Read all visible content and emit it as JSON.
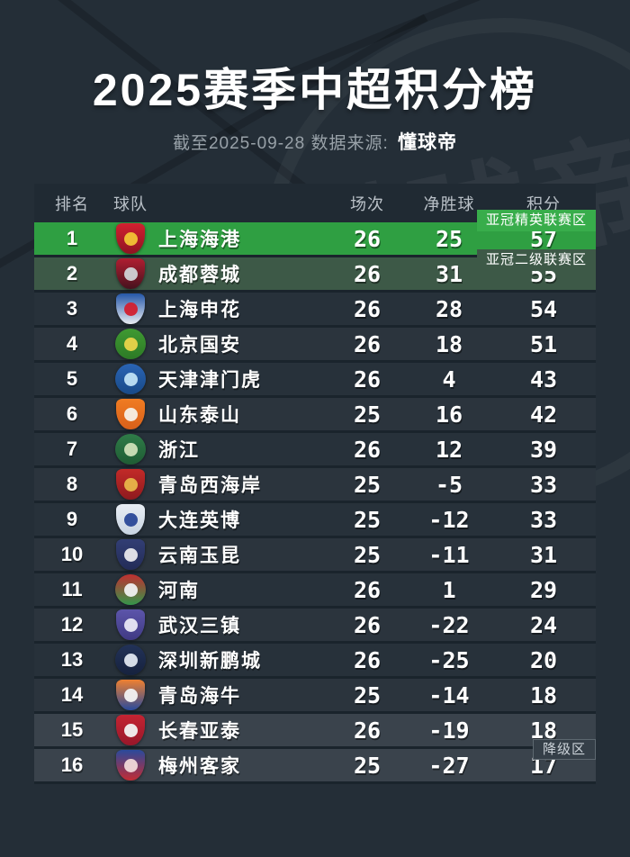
{
  "title": "2025赛季中超积分榜",
  "subtitle": {
    "prefix": "截至2025-09-28 数据来源:",
    "source": "懂球帝"
  },
  "watermark": "懂球帝",
  "colors": {
    "page_bg": "#242e37",
    "header_bg": "#202a33",
    "row_bg": "#27313a",
    "row_alt_bg": "#2b343d",
    "separator": "#1a242c",
    "acl-elite": "#2f9f42",
    "acl-second": "#3d5947",
    "relegation": "#3a434c",
    "zone_elite_badge": "#38ad4b",
    "zone_second_badge": "#3d5947",
    "zone_relegation_badge": "#353f48"
  },
  "table": {
    "headers": {
      "rank": "排名",
      "team": "球队",
      "played": "场次",
      "goal_diff": "净胜球",
      "points": "积分"
    },
    "zones": [
      {
        "label": "亚冠精英联赛区",
        "color_key": "zone_elite_badge"
      },
      {
        "label": "亚冠二级联赛区",
        "color_key": "zone_second_badge"
      },
      {
        "label": "降级区",
        "color_key": "zone_relegation_badge"
      }
    ],
    "rows": [
      {
        "rank": 1,
        "team": "上海海港",
        "played": 26,
        "goal_diff": 25,
        "points": 57,
        "highlight": "acl-elite",
        "logo": {
          "shape": "shield",
          "colors": [
            "#d22030",
            "#8f1322"
          ],
          "accent": "#f2c335"
        }
      },
      {
        "rank": 2,
        "team": "成都蓉城",
        "played": 26,
        "goal_diff": 31,
        "points": 55,
        "highlight": "acl-second",
        "logo": {
          "shape": "shield",
          "colors": [
            "#b01e31",
            "#46121e"
          ],
          "accent": "#d0d3d6"
        }
      },
      {
        "rank": 3,
        "team": "上海申花",
        "played": 26,
        "goal_diff": 28,
        "points": 54,
        "highlight": null,
        "logo": {
          "shape": "shield",
          "colors": [
            "#2456a8",
            "#e8ecf2"
          ],
          "accent": "#d22030"
        }
      },
      {
        "rank": 4,
        "team": "北京国安",
        "played": 26,
        "goal_diff": 18,
        "points": 51,
        "highlight": null,
        "logo": {
          "shape": "circle",
          "colors": [
            "#3f9932",
            "#2d7a26"
          ],
          "accent": "#e9d44a"
        }
      },
      {
        "rank": 5,
        "team": "天津津门虎",
        "played": 26,
        "goal_diff": 4,
        "points": 43,
        "highlight": null,
        "logo": {
          "shape": "circle",
          "colors": [
            "#2a64b4",
            "#184a88"
          ],
          "accent": "#bfe2f5"
        }
      },
      {
        "rank": 6,
        "team": "山东泰山",
        "played": 25,
        "goal_diff": 16,
        "points": 42,
        "highlight": null,
        "logo": {
          "shape": "shield",
          "colors": [
            "#f07c22",
            "#d8601a"
          ],
          "accent": "#f5f0e6"
        }
      },
      {
        "rank": 7,
        "team": "浙江",
        "played": 26,
        "goal_diff": 12,
        "points": 39,
        "highlight": null,
        "logo": {
          "shape": "circle",
          "colors": [
            "#2f7c48",
            "#1f5c34"
          ],
          "accent": "#cfe0b8"
        }
      },
      {
        "rank": 8,
        "team": "青岛西海岸",
        "played": 25,
        "goal_diff": -5,
        "points": 33,
        "highlight": null,
        "logo": {
          "shape": "shield",
          "colors": [
            "#c22a28",
            "#8f1a1e"
          ],
          "accent": "#e8b64a"
        }
      },
      {
        "rank": 9,
        "team": "大连英博",
        "played": 25,
        "goal_diff": -12,
        "points": 33,
        "highlight": null,
        "logo": {
          "shape": "shield",
          "colors": [
            "#e9eef4",
            "#c8d4e2"
          ],
          "accent": "#2a4898"
        }
      },
      {
        "rank": 10,
        "team": "云南玉昆",
        "played": 25,
        "goal_diff": -11,
        "points": 31,
        "highlight": null,
        "logo": {
          "shape": "shield",
          "colors": [
            "#323e74",
            "#232c58"
          ],
          "accent": "#e8e8ec"
        }
      },
      {
        "rank": 11,
        "team": "河南",
        "played": 26,
        "goal_diff": 1,
        "points": 29,
        "highlight": null,
        "logo": {
          "shape": "circle",
          "colors": [
            "#c03030",
            "#35964a"
          ],
          "accent": "#f0f0f0"
        }
      },
      {
        "rank": 12,
        "team": "武汉三镇",
        "played": 26,
        "goal_diff": -22,
        "points": 24,
        "highlight": null,
        "logo": {
          "shape": "shield",
          "colors": [
            "#5c55aa",
            "#403a84"
          ],
          "accent": "#e8e8f4"
        }
      },
      {
        "rank": 13,
        "team": "深圳新鹏城",
        "played": 26,
        "goal_diff": -25,
        "points": 20,
        "highlight": null,
        "logo": {
          "shape": "circle",
          "colors": [
            "#223258",
            "#16223e"
          ],
          "accent": "#dfe6f0"
        }
      },
      {
        "rank": 14,
        "team": "青岛海牛",
        "played": 25,
        "goal_diff": -14,
        "points": 18,
        "highlight": null,
        "logo": {
          "shape": "shield",
          "colors": [
            "#ef8030",
            "#2a4a9c"
          ],
          "accent": "#f2f2f2"
        }
      },
      {
        "rank": 15,
        "team": "长春亚泰",
        "played": 26,
        "goal_diff": -19,
        "points": 18,
        "highlight": "relegation",
        "logo": {
          "shape": "shield",
          "colors": [
            "#c42432",
            "#98172a"
          ],
          "accent": "#f2f2f2"
        }
      },
      {
        "rank": 16,
        "team": "梅州客家",
        "played": 25,
        "goal_diff": -27,
        "points": 17,
        "highlight": "relegation",
        "logo": {
          "shape": "shield",
          "colors": [
            "#2a4a9c",
            "#c22c34"
          ],
          "accent": "#f0d8d8"
        }
      }
    ]
  }
}
